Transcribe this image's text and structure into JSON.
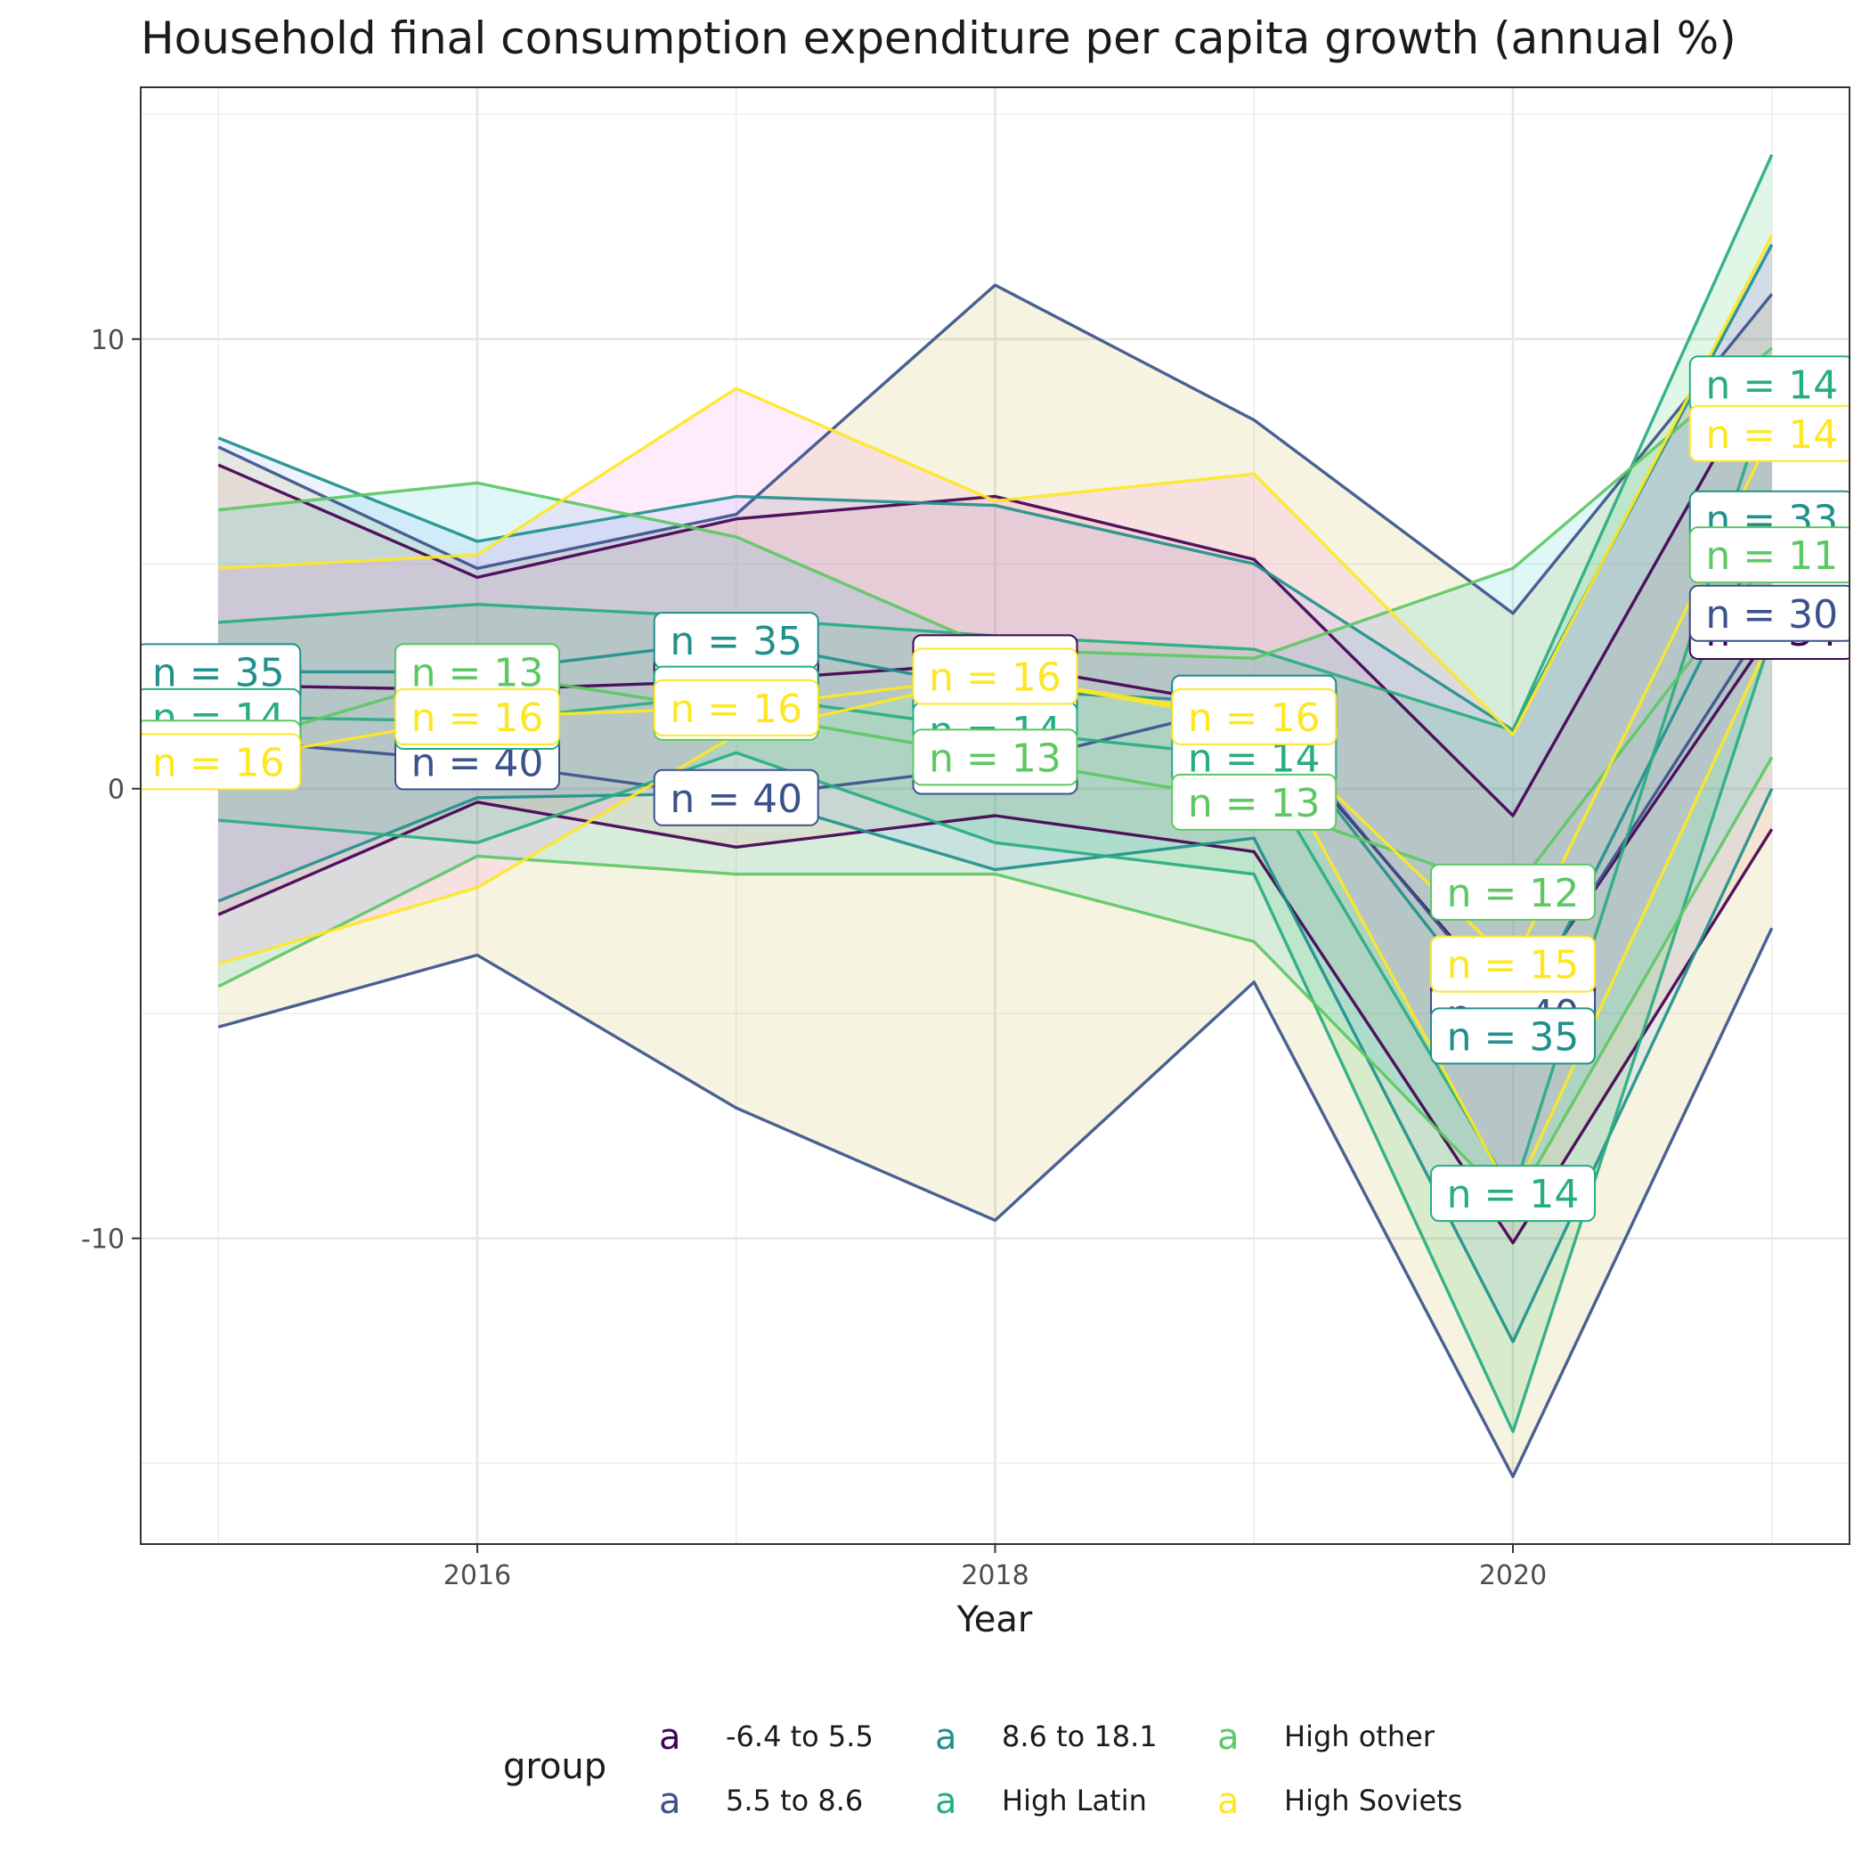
{
  "chart_data": {
    "type": "line",
    "title": "Household final consumption expenditure per capita growth (annual %)",
    "xlabel": "Year",
    "ylabel": "",
    "x": [
      2015,
      2016,
      2017,
      2018,
      2019,
      2020,
      2021
    ],
    "xlim": [
      2014.7,
      2021.3
    ],
    "ylim": [
      -16.8,
      15.6
    ],
    "x_ticks": [
      "2016",
      "2018",
      "2020"
    ],
    "x_tick_values": [
      2016,
      2018,
      2020
    ],
    "y_ticks": [
      "-10",
      "0",
      "10"
    ],
    "y_tick_values": [
      -10,
      0,
      10
    ],
    "grid": true,
    "legend": {
      "title": "group",
      "position": "bottom",
      "key_glyph": "a",
      "entries": [
        "-6.4 to 5.5",
        "5.5 to 8.6",
        "8.6 to 18.1",
        "High Latin",
        "High other",
        "High Soviets"
      ]
    },
    "series": [
      {
        "name": "-6.4 to 5.5",
        "color": "#440154",
        "fill": "#F8766D",
        "upper": [
          7.2,
          4.7,
          6.0,
          6.5,
          5.1,
          -0.6,
          9.6
        ],
        "mean": [
          2.3,
          2.2,
          2.4,
          2.8,
          1.8,
          -4.9,
          3.5
        ],
        "lower": [
          -2.8,
          -0.3,
          -1.3,
          -0.6,
          -1.4,
          -10.1,
          -0.9
        ],
        "labels": [
          "n = 34",
          "n = 34",
          "n = 34",
          "n = 34",
          "n = 34",
          "n = 34",
          "n = 34"
        ]
      },
      {
        "name": "5.5 to 8.6",
        "color": "#3B528B",
        "fill": "#B79F00",
        "upper": [
          7.6,
          4.9,
          6.1,
          11.2,
          8.2,
          3.9,
          11.0
        ],
        "mean": [
          1.1,
          0.6,
          -0.2,
          0.5,
          1.9,
          -5.0,
          3.9
        ],
        "lower": [
          -5.3,
          -3.7,
          -7.1,
          -9.6,
          -4.3,
          -15.3,
          -3.1
        ],
        "labels": [
          "n = 40",
          "n = 40",
          "n = 40",
          "n = 40",
          "n = 40",
          "n = 40",
          "n = 30"
        ]
      },
      {
        "name": "8.6 to 18.1",
        "color": "#21908C",
        "fill": "#619CFF",
        "upper": [
          7.8,
          5.5,
          6.5,
          6.3,
          5.0,
          1.3,
          12.1
        ],
        "mean": [
          2.6,
          2.6,
          3.3,
          2.2,
          1.9,
          -5.5,
          6.0
        ],
        "lower": [
          -2.5,
          -0.2,
          -0.1,
          -1.8,
          -1.1,
          -12.3,
          0.0
        ],
        "labels": [
          "n = 35",
          "n = 35",
          "n = 35",
          "n = 35",
          "n = 35",
          "n = 35",
          "n = 33"
        ]
      },
      {
        "name": "High Latin",
        "color": "#27AD81",
        "fill": "#00BA38",
        "upper": [
          3.7,
          4.1,
          3.8,
          3.4,
          3.1,
          1.3,
          14.1
        ],
        "mean": [
          1.6,
          1.5,
          2.1,
          1.3,
          0.7,
          -9.0,
          9.0
        ],
        "lower": [
          -0.7,
          -1.2,
          0.8,
          -1.2,
          -1.9,
          -14.3,
          3.4
        ],
        "labels": [
          "n = 14",
          "n = 14",
          "n = 14",
          "n = 14",
          "n = 14",
          "n = 14",
          "n = 14"
        ]
      },
      {
        "name": "High other",
        "color": "#5DC863",
        "fill": "#00BFC4",
        "upper": [
          6.2,
          6.8,
          5.6,
          3.1,
          2.9,
          4.9,
          9.8
        ],
        "mean": [
          0.9,
          2.6,
          1.7,
          0.7,
          -0.3,
          -2.3,
          5.2
        ],
        "lower": [
          -4.4,
          -1.5,
          -1.9,
          -1.9,
          -3.4,
          -9.3,
          0.7
        ],
        "labels": [
          "n = 13",
          "n = 13",
          "n = 13",
          "n = 13",
          "n = 13",
          "n = 12",
          "n = 11"
        ]
      },
      {
        "name": "High Soviets",
        "color": "#FDE725",
        "fill": "#F564E3",
        "upper": [
          4.9,
          5.2,
          8.9,
          6.4,
          7.0,
          1.2,
          12.3
        ],
        "mean": [
          0.6,
          1.6,
          1.8,
          2.5,
          1.6,
          -3.9,
          7.9
        ],
        "lower": [
          -3.9,
          -2.2,
          1.2,
          2.5,
          1.5,
          -9.1,
          3.4
        ],
        "labels": [
          "n = 16",
          "n = 16",
          "n = 16",
          "n = 16",
          "n = 16",
          "n = 15",
          "n = 14"
        ]
      }
    ]
  }
}
